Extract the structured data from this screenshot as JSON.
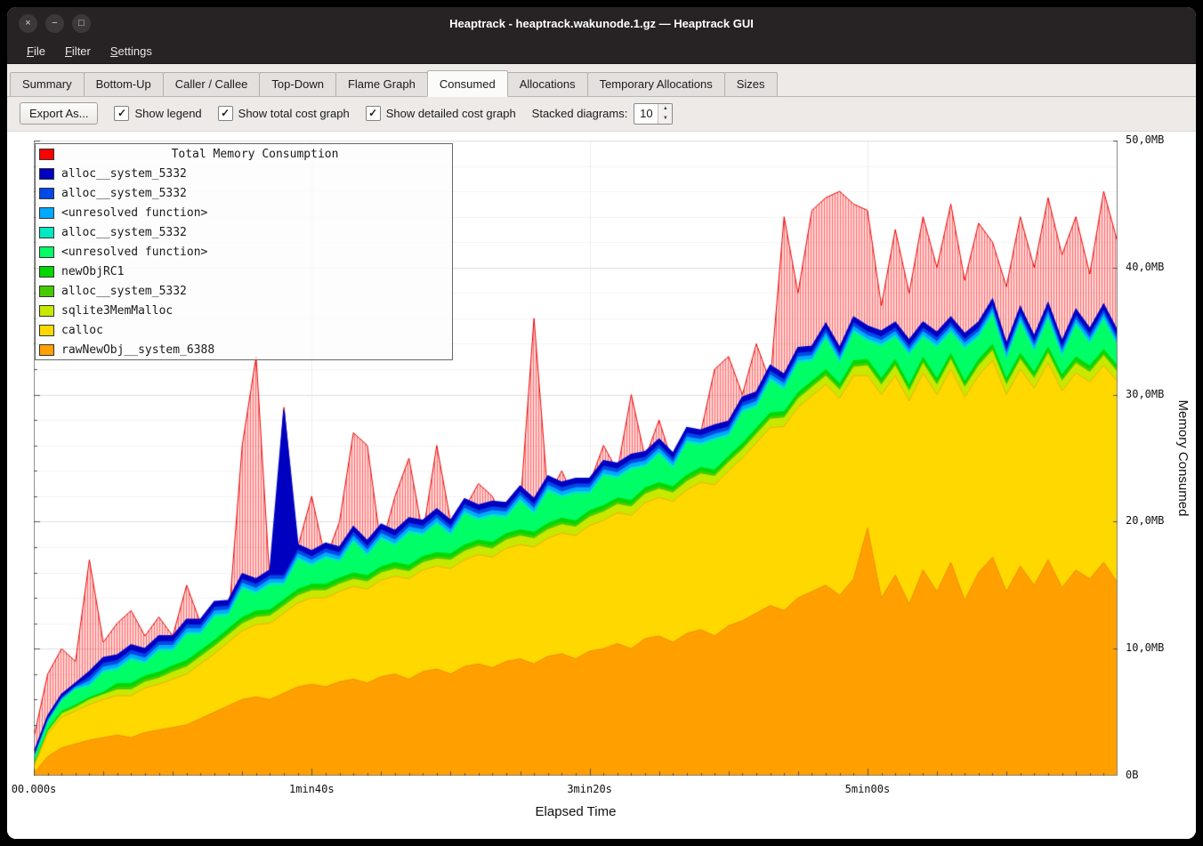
{
  "window": {
    "title": "Heaptrack - heaptrack.wakunode.1.gz — Heaptrack GUI"
  },
  "titlebar": {
    "buttons": [
      {
        "name": "close",
        "glyph": "×"
      },
      {
        "name": "minimize",
        "glyph": "−"
      },
      {
        "name": "maximize",
        "glyph": "□"
      }
    ]
  },
  "menu": {
    "items": [
      "File",
      "Filter",
      "Settings"
    ]
  },
  "tabs": {
    "items": [
      "Summary",
      "Bottom-Up",
      "Caller / Callee",
      "Top-Down",
      "Flame Graph",
      "Consumed",
      "Allocations",
      "Temporary Allocations",
      "Sizes"
    ],
    "active_index": 5
  },
  "toolbar": {
    "export_label": "Export As...",
    "check_glyph": "✓",
    "checkboxes": [
      {
        "label": "Show legend",
        "checked": true
      },
      {
        "label": "Show total cost graph",
        "checked": true
      },
      {
        "label": "Show detailed cost graph",
        "checked": true
      }
    ],
    "stacked_label": "Stacked diagrams:",
    "stacked_value": "10",
    "spin_up_glyph": "▲",
    "spin_down_glyph": "▼"
  },
  "chart_data": {
    "type": "area",
    "xlabel": "Elapsed Time",
    "ylabel": "Memory Consumed",
    "x_axis": {
      "max": 390,
      "ticks": [
        {
          "label": "00.000s",
          "value": 0
        },
        {
          "label": "1min40s",
          "value": 100
        },
        {
          "label": "3min20s",
          "value": 200
        },
        {
          "label": "5min00s",
          "value": 300
        }
      ]
    },
    "y_axis": {
      "max": 50,
      "ticks": [
        {
          "label": "0B",
          "value": 0
        },
        {
          "label": "10,0MB",
          "value": 10
        },
        {
          "label": "20,0MB",
          "value": 20
        },
        {
          "label": "30,0MB",
          "value": 30
        },
        {
          "label": "40,0MB",
          "value": 40
        },
        {
          "label": "50,0MB",
          "value": 50
        }
      ]
    },
    "x": [
      0,
      5,
      10,
      15,
      20,
      25,
      30,
      35,
      40,
      45,
      50,
      55,
      60,
      65,
      70,
      75,
      80,
      85,
      90,
      95,
      100,
      105,
      110,
      115,
      120,
      125,
      130,
      135,
      140,
      145,
      150,
      155,
      160,
      165,
      170,
      175,
      180,
      185,
      190,
      195,
      200,
      205,
      210,
      215,
      220,
      225,
      230,
      235,
      240,
      245,
      250,
      255,
      260,
      265,
      270,
      275,
      280,
      285,
      290,
      295,
      300,
      305,
      310,
      315,
      320,
      325,
      330,
      335,
      340,
      345,
      350,
      355,
      360,
      365,
      370,
      375,
      380,
      385,
      390
    ],
    "series": [
      {
        "name": "rawNewObj__system_6388",
        "color": "#ffa000",
        "values": [
          0.2,
          1.5,
          2.2,
          2.5,
          2.8,
          3.0,
          3.2,
          3.0,
          3.4,
          3.6,
          3.8,
          4.0,
          4.5,
          5.0,
          5.5,
          6.0,
          6.2,
          6.0,
          6.5,
          7.0,
          7.2,
          7.0,
          7.4,
          7.6,
          7.3,
          7.8,
          8.0,
          7.6,
          8.2,
          8.4,
          8.0,
          8.6,
          8.8,
          8.5,
          9.0,
          9.2,
          8.8,
          9.4,
          9.6,
          9.2,
          9.8,
          10.0,
          10.4,
          10.0,
          10.8,
          11.0,
          10.5,
          11.2,
          11.5,
          11.0,
          11.8,
          12.2,
          12.8,
          13.4,
          13.0,
          14.0,
          14.5,
          15.0,
          14.2,
          15.5,
          19.5,
          14.0,
          15.8,
          13.5,
          16.2,
          14.5,
          16.8,
          13.8,
          16.0,
          17.2,
          14.5,
          16.5,
          15.0,
          17.0,
          14.8,
          16.2,
          15.5,
          16.8,
          15.2
        ]
      },
      {
        "name": "calloc",
        "color": "#ffd800",
        "values": [
          0.5,
          1.8,
          2.4,
          2.6,
          2.8,
          3.0,
          3.1,
          3.3,
          3.5,
          3.6,
          3.8,
          4.0,
          4.3,
          4.6,
          5.0,
          5.4,
          5.7,
          6.0,
          6.3,
          6.6,
          6.8,
          7.0,
          7.1,
          7.3,
          7.4,
          7.6,
          7.7,
          7.9,
          8.0,
          8.1,
          8.3,
          8.4,
          8.6,
          8.7,
          8.9,
          9.0,
          9.2,
          9.3,
          9.5,
          9.7,
          9.9,
          10.1,
          10.3,
          10.5,
          10.7,
          10.9,
          11.1,
          11.3,
          11.6,
          11.9,
          12.2,
          12.8,
          13.4,
          14.0,
          14.5,
          15.0,
          15.4,
          15.8,
          15.5,
          16.0,
          12.0,
          16.0,
          15.7,
          16.0,
          15.5,
          15.5,
          15.2,
          16.0,
          15.5,
          15.5,
          15.5,
          15.5,
          15.5,
          15.5,
          15.5,
          15.5,
          15.5,
          15.5,
          15.8
        ]
      },
      {
        "name": "sqlite3MemMalloc",
        "color": "#c8e800",
        "values": [
          0.1,
          0.2,
          0.3,
          0.3,
          0.4,
          0.4,
          0.5,
          0.5,
          0.5,
          0.5,
          0.6,
          0.6,
          0.6,
          0.6,
          0.6,
          0.6,
          0.6,
          0.6,
          0.6,
          0.6,
          0.6,
          0.6,
          0.6,
          0.6,
          0.6,
          0.6,
          0.6,
          0.6,
          0.6,
          0.6,
          0.7,
          0.7,
          0.7,
          0.7,
          0.7,
          0.7,
          0.7,
          0.7,
          0.7,
          0.7,
          0.7,
          0.7,
          0.7,
          0.7,
          0.7,
          0.7,
          0.7,
          0.7,
          0.7,
          0.7,
          0.7,
          0.7,
          0.7,
          0.7,
          0.7,
          0.7,
          0.7,
          0.7,
          0.7,
          0.7,
          0.8,
          0.8,
          0.8,
          0.8,
          0.8,
          0.8,
          0.8,
          0.8,
          0.8,
          0.8,
          0.8,
          0.8,
          0.8,
          0.8,
          0.8,
          0.8,
          0.8,
          0.8,
          0.8
        ]
      },
      {
        "name": "alloc__system_5332",
        "color": "#44cc00",
        "values": [
          0.1,
          0.1,
          0.1,
          0.1,
          0.1,
          0.1,
          0.2,
          0.2,
          0.2,
          0.2,
          0.2,
          0.2,
          0.2,
          0.2,
          0.2,
          0.2,
          0.2,
          0.2,
          0.2,
          0.2,
          0.2,
          0.2,
          0.2,
          0.2,
          0.2,
          0.2,
          0.2,
          0.2,
          0.2,
          0.2,
          0.2,
          0.2,
          0.2,
          0.2,
          0.2,
          0.2,
          0.2,
          0.2,
          0.2,
          0.2,
          0.2,
          0.2,
          0.2,
          0.2,
          0.2,
          0.2,
          0.2,
          0.2,
          0.2,
          0.2,
          0.2,
          0.2,
          0.2,
          0.2,
          0.2,
          0.2,
          0.2,
          0.2,
          0.2,
          0.2,
          0.2,
          0.2,
          0.2,
          0.2,
          0.2,
          0.2,
          0.2,
          0.2,
          0.2,
          0.2,
          0.2,
          0.2,
          0.2,
          0.2,
          0.2,
          0.2,
          0.2,
          0.2,
          0.2
        ]
      },
      {
        "name": "newObjRC1",
        "color": "#00d800",
        "values": [
          0.1,
          0.1,
          0.1,
          0.1,
          0.1,
          0.1,
          0.3,
          0.3,
          0.3,
          0.3,
          0.3,
          0.3,
          0.3,
          0.3,
          0.3,
          0.3,
          0.3,
          0.3,
          0.3,
          0.3,
          0.3,
          0.3,
          0.3,
          0.3,
          0.3,
          0.3,
          0.3,
          0.3,
          0.3,
          0.3,
          0.3,
          0.3,
          0.3,
          0.3,
          0.3,
          0.3,
          0.3,
          0.3,
          0.3,
          0.3,
          0.3,
          0.3,
          0.3,
          0.3,
          0.3,
          0.3,
          0.3,
          0.3,
          0.3,
          0.3,
          0.3,
          0.3,
          0.3,
          0.3,
          0.3,
          0.3,
          0.3,
          0.3,
          0.3,
          0.3,
          0.3,
          0.3,
          0.3,
          0.3,
          0.3,
          0.3,
          0.3,
          0.3,
          0.3,
          0.3,
          0.3,
          0.3,
          0.3,
          0.3,
          0.3,
          0.3,
          0.3,
          0.3,
          0.3
        ]
      },
      {
        "name": "<unresolved function>",
        "color": "#00ff66",
        "values": [
          0.3,
          0.5,
          0.8,
          1.2,
          0.8,
          1.5,
          1.0,
          1.8,
          0.9,
          1.6,
          1.1,
          2.0,
          1.2,
          1.8,
          1.0,
          2.2,
          1.3,
          1.9,
          1.1,
          2.3,
          1.4,
          2.0,
          1.2,
          2.4,
          1.5,
          2.1,
          1.3,
          2.5,
          1.6,
          2.2,
          1.4,
          2.4,
          1.5,
          2.0,
          1.2,
          2.2,
          1.4,
          2.5,
          1.6,
          2.1,
          1.3,
          2.3,
          1.5,
          2.4,
          1.6,
          2.2,
          1.4,
          2.5,
          1.7,
          2.3,
          1.5,
          2.4,
          1.6,
          2.5,
          1.7,
          2.3,
          1.5,
          2.4,
          1.6,
          2.2,
          1.4,
          2.5,
          1.7,
          2.3,
          1.5,
          2.4,
          1.6,
          2.5,
          1.7,
          2.3,
          1.5,
          2.4,
          1.6,
          2.2,
          1.4,
          2.5,
          1.7,
          2.3,
          1.5
        ]
      },
      {
        "name": "alloc__system_5332",
        "color": "#00e8c0",
        "values": [
          0.1,
          0.1,
          0.1,
          0.1,
          0.2,
          0.2,
          0.2,
          0.2,
          0.2,
          0.2,
          0.2,
          0.2,
          0.2,
          0.2,
          0.2,
          0.2,
          0.2,
          0.2,
          0.2,
          0.2,
          0.2,
          0.2,
          0.2,
          0.2,
          0.2,
          0.2,
          0.2,
          0.2,
          0.2,
          0.2,
          0.2,
          0.2,
          0.2,
          0.2,
          0.2,
          0.2,
          0.2,
          0.2,
          0.2,
          0.2,
          0.2,
          0.2,
          0.2,
          0.2,
          0.2,
          0.2,
          0.2,
          0.2,
          0.2,
          0.2,
          0.2,
          0.2,
          0.2,
          0.2,
          0.2,
          0.2,
          0.2,
          0.2,
          0.2,
          0.2,
          0.2,
          0.2,
          0.2,
          0.2,
          0.2,
          0.2,
          0.2,
          0.2,
          0.2,
          0.2,
          0.2,
          0.2,
          0.2,
          0.2,
          0.2,
          0.2,
          0.2,
          0.2,
          0.2
        ]
      },
      {
        "name": "<unresolved function>",
        "color": "#00aaff",
        "values": [
          0.1,
          0.1,
          0.1,
          0.1,
          0.3,
          0.3,
          0.3,
          0.3,
          0.3,
          0.3,
          0.3,
          0.3,
          0.3,
          0.3,
          0.3,
          0.3,
          0.3,
          0.3,
          0.3,
          0.3,
          0.3,
          0.3,
          0.3,
          0.3,
          0.3,
          0.3,
          0.3,
          0.3,
          0.3,
          0.3,
          0.3,
          0.3,
          0.3,
          0.3,
          0.3,
          0.3,
          0.3,
          0.3,
          0.3,
          0.3,
          0.3,
          0.3,
          0.3,
          0.3,
          0.3,
          0.3,
          0.3,
          0.3,
          0.3,
          0.3,
          0.3,
          0.3,
          0.3,
          0.3,
          0.3,
          0.3,
          0.3,
          0.3,
          0.3,
          0.3,
          0.3,
          0.3,
          0.3,
          0.3,
          0.3,
          0.3,
          0.3,
          0.3,
          0.3,
          0.3,
          0.3,
          0.3,
          0.3,
          0.3,
          0.3,
          0.3,
          0.3,
          0.3,
          0.3
        ]
      },
      {
        "name": "alloc__system_5332",
        "color": "#0048e8",
        "values": [
          0.1,
          0.1,
          0.1,
          0.1,
          0.3,
          0.3,
          0.3,
          0.3,
          0.3,
          0.3,
          0.3,
          0.3,
          0.3,
          0.3,
          0.3,
          0.3,
          0.3,
          0.3,
          0.3,
          0.3,
          0.3,
          0.3,
          0.3,
          0.3,
          0.3,
          0.3,
          0.3,
          0.3,
          0.3,
          0.3,
          0.3,
          0.3,
          0.3,
          0.3,
          0.3,
          0.3,
          0.3,
          0.3,
          0.3,
          0.3,
          0.3,
          0.3,
          0.3,
          0.3,
          0.3,
          0.3,
          0.3,
          0.3,
          0.3,
          0.3,
          0.3,
          0.3,
          0.3,
          0.3,
          0.3,
          0.3,
          0.3,
          0.3,
          0.3,
          0.3,
          0.3,
          0.3,
          0.3,
          0.3,
          0.3,
          0.3,
          0.3,
          0.3,
          0.3,
          0.3,
          0.3,
          0.3,
          0.3,
          0.3,
          0.3,
          0.3,
          0.3,
          0.3,
          0.3
        ]
      },
      {
        "name": "alloc__system_5332",
        "color": "#0000c0",
        "values": [
          0.2,
          0.2,
          0.2,
          0.2,
          0.4,
          0.4,
          0.4,
          0.4,
          0.4,
          0.4,
          0.4,
          0.4,
          0.4,
          0.4,
          0.4,
          0.4,
          0.4,
          0.4,
          13.0,
          0.4,
          0.4,
          0.4,
          0.4,
          0.4,
          0.4,
          0.4,
          0.4,
          0.4,
          0.4,
          0.4,
          0.4,
          0.4,
          0.4,
          0.4,
          0.4,
          0.4,
          0.4,
          0.4,
          0.4,
          0.4,
          0.4,
          0.4,
          0.4,
          0.4,
          0.4,
          0.4,
          0.4,
          0.4,
          0.4,
          0.4,
          0.4,
          0.4,
          0.4,
          0.4,
          0.4,
          0.4,
          0.4,
          0.4,
          0.4,
          0.4,
          0.4,
          0.4,
          0.4,
          0.4,
          0.4,
          0.4,
          0.4,
          0.4,
          0.4,
          0.4,
          0.4,
          0.4,
          0.4,
          0.4,
          0.4,
          0.4,
          0.4,
          0.4,
          0.4
        ]
      }
    ],
    "total": {
      "name": "Total Memory Consumption",
      "color": "#ff0000",
      "values": [
        3.0,
        8.0,
        10.0,
        9.0,
        17.0,
        10.5,
        12.0,
        13.0,
        11.0,
        12.5,
        11.0,
        15.0,
        12.0,
        13.5,
        12.0,
        26.0,
        33.0,
        15.0,
        29.0,
        18.0,
        22.0,
        17.0,
        20.0,
        27.0,
        26.0,
        18.0,
        22.0,
        25.0,
        19.0,
        26.0,
        20.0,
        21.0,
        23.0,
        22.0,
        19.5,
        21.0,
        36.0,
        22.0,
        24.0,
        21.5,
        23.0,
        26.0,
        24.0,
        30.0,
        25.0,
        28.0,
        24.5,
        25.5,
        27.0,
        32.0,
        33.0,
        30.0,
        34.0,
        31.0,
        44.0,
        38.0,
        44.5,
        45.5,
        46.0,
        45.0,
        44.5,
        37.0,
        43.0,
        38.0,
        44.0,
        40.0,
        45.0,
        39.0,
        43.5,
        42.0,
        38.5,
        44.0,
        40.0,
        45.5,
        41.0,
        44.0,
        39.5,
        46.0,
        42.0
      ]
    }
  }
}
